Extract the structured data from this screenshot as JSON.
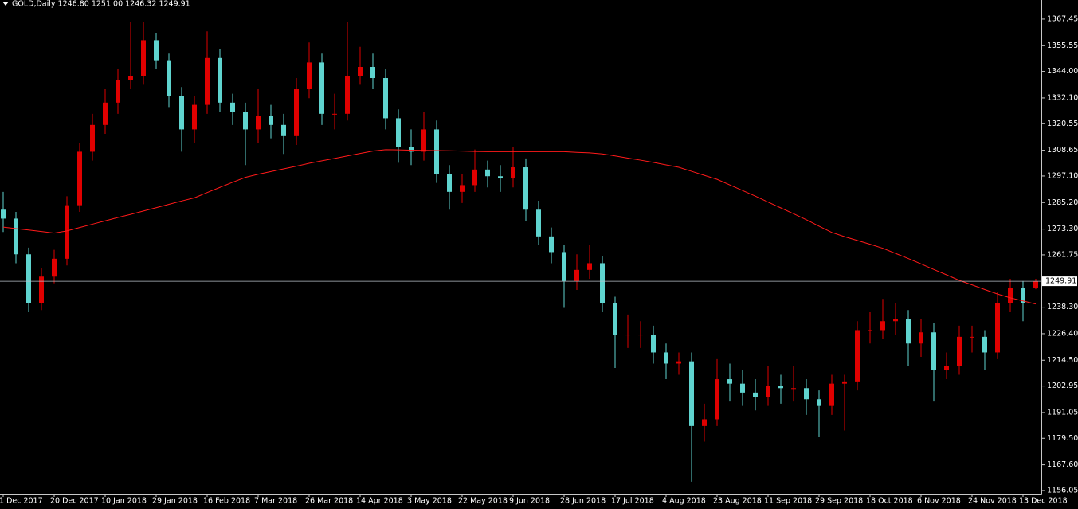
{
  "chart_data": {
    "type": "candlestick",
    "title": "GOLD,Daily  1246.80 1251.00 1246.32 1249.91",
    "up_color": "#e00000",
    "down_color": "#5fd4cf",
    "open": [
      1282,
      1278,
      1262,
      1240,
      1252,
      1260,
      1284,
      1308,
      1320,
      1330,
      1340,
      1342,
      1358,
      1349,
      1333,
      1318,
      1329,
      1350,
      1330,
      1326,
      1318,
      1324,
      1320,
      1315,
      1336,
      1348,
      1325,
      1325,
      1342,
      1346,
      1341,
      1323,
      1310,
      1308,
      1318,
      1298,
      1290,
      1293,
      1300,
      1297,
      1296,
      1301,
      1282,
      1270,
      1263,
      1250,
      1255,
      1258,
      1240,
      1226,
      1226,
      1226,
      1218,
      1213,
      1214,
      1185,
      1188,
      1206,
      1204,
      1200,
      1198,
      1203,
      1202,
      1202,
      1197,
      1194,
      1204,
      1205,
      1228,
      1228,
      1232,
      1233,
      1222,
      1227,
      1210,
      1212,
      1225,
      1225,
      1218,
      1240,
      1247,
      1246.8
    ],
    "high": [
      1290,
      1281,
      1265,
      1256,
      1264,
      1288,
      1312,
      1325,
      1336,
      1345,
      1366,
      1366,
      1361,
      1352,
      1337,
      1333,
      1362,
      1354,
      1334,
      1330,
      1336,
      1329,
      1325,
      1341,
      1357,
      1352,
      1334,
      1366,
      1355,
      1352,
      1345,
      1327,
      1318,
      1326,
      1322,
      1302,
      1298,
      1309,
      1304,
      1302,
      1310,
      1305,
      1286,
      1274,
      1266,
      1262,
      1266,
      1261,
      1243,
      1235,
      1232,
      1230,
      1222,
      1218,
      1218,
      1195,
      1215,
      1213,
      1210,
      1206,
      1212,
      1208,
      1212,
      1206,
      1201,
      1208,
      1208,
      1232,
      1236,
      1242,
      1240,
      1237,
      1233,
      1231,
      1218,
      1230,
      1230,
      1228,
      1245,
      1251,
      1250,
      1251
    ],
    "low": [
      1272,
      1258,
      1236,
      1237,
      1249,
      1257,
      1281,
      1304,
      1316,
      1325,
      1336,
      1338,
      1345,
      1328,
      1308,
      1312,
      1325,
      1326,
      1320,
      1302,
      1312,
      1314,
      1307,
      1311,
      1332,
      1320,
      1318,
      1322,
      1338,
      1336,
      1318,
      1303,
      1302,
      1304,
      1294,
      1282,
      1285,
      1290,
      1292,
      1290,
      1292,
      1277,
      1266,
      1258,
      1238,
      1246,
      1251,
      1236,
      1211,
      1220,
      1220,
      1213,
      1206,
      1208,
      1160,
      1178,
      1185,
      1196,
      1194,
      1192,
      1194,
      1195,
      1196,
      1190,
      1180,
      1190,
      1183,
      1201,
      1222,
      1224,
      1226,
      1212,
      1216,
      1196,
      1206,
      1208,
      1218,
      1210,
      1215,
      1236,
      1232,
      1246.32
    ],
    "close": [
      1278,
      1262,
      1240,
      1252,
      1260,
      1284,
      1308,
      1320,
      1330,
      1340,
      1342,
      1358,
      1349,
      1333,
      1318,
      1329,
      1350,
      1330,
      1326,
      1318,
      1324,
      1320,
      1315,
      1336,
      1348,
      1325,
      1325,
      1342,
      1346,
      1341,
      1323,
      1310,
      1308,
      1318,
      1298,
      1290,
      1293,
      1300,
      1297,
      1296,
      1301,
      1282,
      1270,
      1263,
      1250,
      1255,
      1258,
      1240,
      1226,
      1226,
      1226,
      1218,
      1213,
      1214,
      1185,
      1188,
      1206,
      1204,
      1200,
      1198,
      1203,
      1202,
      1202,
      1197,
      1194,
      1204,
      1205,
      1228,
      1228,
      1232,
      1233,
      1222,
      1227,
      1210,
      1212,
      1225,
      1225,
      1218,
      1240,
      1247,
      1240,
      1249.91
    ],
    "ma": {
      "color": "#ff1a1a",
      "values": [
        1274.2,
        1273.5,
        1272.9,
        1272.2,
        1271.5,
        1272.5,
        1274.0,
        1275.5,
        1277.0,
        1278.5,
        1279.9,
        1281.4,
        1282.9,
        1284.4,
        1285.9,
        1287.3,
        1289.7,
        1292.0,
        1294.3,
        1296.5,
        1297.9,
        1299.1,
        1300.3,
        1301.5,
        1302.8,
        1303.9,
        1305.0,
        1306.1,
        1307.2,
        1308.3,
        1308.9,
        1308.8,
        1308.7,
        1308.6,
        1308.5,
        1308.4,
        1308.3,
        1308.1,
        1308.0,
        1308.0,
        1308.0,
        1308.0,
        1308.0,
        1308.0,
        1308.0,
        1307.7,
        1307.5,
        1307.0,
        1306.1,
        1305.1,
        1304.2,
        1303.2,
        1302.1,
        1301.0,
        1299.2,
        1297.4,
        1295.6,
        1293.1,
        1290.6,
        1288.1,
        1285.4,
        1282.8,
        1280.2,
        1277.5,
        1274.6,
        1271.8,
        1269.9,
        1268.2,
        1266.5,
        1264.7,
        1262.4,
        1260.1,
        1257.7,
        1255.2,
        1252.8,
        1250.3,
        1248.3,
        1246.2,
        1244.2,
        1242.5,
        1241.1,
        1239.7
      ]
    },
    "last_price": 1249.91,
    "ylim": [
      1154.6,
      1376.0
    ],
    "yticks": [
      1367.45,
      1355.55,
      {
        "value": 1344.0,
        "label": "1344.00"
      },
      {
        "value": 1332.1,
        "label": "1332.10"
      },
      1320.55,
      1308.65,
      {
        "value": 1297.1,
        "label": "1297.10"
      },
      {
        "value": 1285.2,
        "label": "1285.20"
      },
      {
        "value": 1273.3,
        "label": "1273.30"
      },
      1261.75,
      {
        "value": 1238.3,
        "label": "1238.30"
      },
      {
        "value": 1226.4,
        "label": "1226.40"
      },
      {
        "value": 1214.5,
        "label": "1214.50"
      },
      1202.95,
      1191.05,
      {
        "value": 1179.5,
        "label": "1179.50"
      },
      {
        "value": 1167.6,
        "label": "1167.60"
      },
      1156.05
    ],
    "xticks": [
      {
        "value": 0,
        "label": "1 Dec 2017"
      },
      {
        "value": 4,
        "label": "20 Dec 2017"
      },
      {
        "value": 8,
        "label": "10 Jan 2018"
      },
      {
        "value": 12,
        "label": "29 Jan 2018"
      },
      {
        "value": 16,
        "label": "16 Feb 2018"
      },
      {
        "value": 20,
        "label": "7 Mar 2018"
      },
      {
        "value": 24,
        "label": "26 Mar 2018"
      },
      {
        "value": 28,
        "label": "14 Apr 2018"
      },
      {
        "value": 32,
        "label": "3 May 2018"
      },
      {
        "value": 36,
        "label": "22 May 2018"
      },
      {
        "value": 40,
        "label": "9 Jun 2018"
      },
      {
        "value": 44,
        "label": "28 Jun 2018"
      },
      {
        "value": 48,
        "label": "17 Jul 2018"
      },
      {
        "value": 52,
        "label": "4 Aug 2018"
      },
      {
        "value": 56,
        "label": "23 Aug 2018"
      },
      {
        "value": 60,
        "label": "11 Sep 2018"
      },
      {
        "value": 64,
        "label": "29 Sep 2018"
      },
      {
        "value": 68,
        "label": "18 Oct 2018"
      },
      {
        "value": 72,
        "label": "6 Nov 2018"
      },
      {
        "value": 76,
        "label": "24 Nov 2018"
      },
      {
        "value": 80,
        "label": "13 Dec 2018"
      }
    ]
  }
}
